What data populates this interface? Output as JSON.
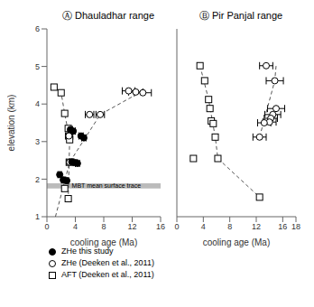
{
  "chart_data": [
    {
      "type": "scatter",
      "title": "Ⓐ  Dhauladhar range",
      "x_label": "cooling age (Ma)",
      "y_label": "elevation (km)",
      "xlim": [
        0,
        16
      ],
      "xticks": [
        0,
        4,
        8,
        12,
        16
      ],
      "ylim": [
        1,
        6
      ],
      "yticks": [
        1,
        2,
        3,
        4,
        5,
        6
      ],
      "grid": false,
      "legend": "bottom",
      "bands": [
        {
          "y0": 1.75,
          "y1": 1.89,
          "color": "#aaaaaa"
        }
      ],
      "annotations": [
        {
          "text": "MBT mean surface trace",
          "x": 3.5,
          "y": 1.82
        }
      ],
      "series": [
        {
          "type": "line",
          "line_style": "dashed",
          "color": "#555555",
          "x": [
            1.2,
            3.2,
            7.5,
            13.5
          ],
          "values": [
            1.0,
            2.45,
            3.72,
            4.35
          ]
        },
        {
          "type": "line",
          "line_style": "dashed",
          "color": "#555555",
          "x": [
            1.0,
            2.0,
            2.5,
            3.2,
            3.0
          ],
          "values": [
            4.45,
            4.3,
            3.75,
            3.05,
            1.48
          ]
        },
        {
          "name": "ZHe this study",
          "type": "scatter",
          "marker": "filled_circle",
          "color": "#000000",
          "x": [
            3.3,
            3.7,
            4.8,
            5.2,
            3.5,
            4.0,
            4.3,
            1.8,
            2.3,
            2.8
          ],
          "values": [
            3.32,
            3.28,
            3.15,
            3.1,
            2.46,
            2.44,
            2.42,
            2.12,
            1.98,
            1.96
          ],
          "xerr": [
            0.3,
            0.3,
            0.3,
            0.3,
            0.3,
            0.3,
            0.3,
            0.25,
            0.25,
            0.25
          ]
        },
        {
          "name": "ZHe (Deeken et al., 2011)",
          "type": "scatter",
          "marker": "open_circle",
          "color": "#000000",
          "x": [
            3.1,
            3.2,
            6.0,
            7.5,
            11.5,
            12.5,
            13.5
          ],
          "values": [
            3.15,
            2.45,
            3.72,
            3.72,
            4.35,
            4.32,
            4.3
          ],
          "xerr": [
            0.5,
            0.5,
            0.6,
            0.6,
            0.9,
            1.0,
            1.2
          ]
        },
        {
          "name": "AFT (Deeken et al., 2011)",
          "type": "scatter",
          "marker": "open_square",
          "color": "#000000",
          "x": [
            1.0,
            2.0,
            2.5,
            3.0,
            3.2,
            3.2,
            3.2,
            2.5,
            3.0
          ],
          "values": [
            4.45,
            4.3,
            3.75,
            3.35,
            3.15,
            3.05,
            2.45,
            1.75,
            1.48
          ]
        }
      ]
    },
    {
      "type": "scatter",
      "title": "Ⓑ  Pir Panjal range",
      "x_label": "cooling age (Ma)",
      "xlim": [
        0,
        18
      ],
      "xticks": [
        0,
        4,
        8,
        12,
        16,
        18
      ],
      "ylim": [
        1,
        6
      ],
      "yticks": [
        1,
        2,
        3,
        4,
        5,
        6
      ],
      "grid": false,
      "tick_labels": "x",
      "series": [
        {
          "type": "line",
          "line_style": "dashed",
          "color": "#555555",
          "x": [
            12.5,
            14.8,
            15.0
          ],
          "values": [
            3.12,
            4.62,
            5.02
          ]
        },
        {
          "type": "line",
          "line_style": "dashed",
          "color": "#555555",
          "x": [
            3.5,
            4.8,
            5.8,
            6.2,
            12.5
          ],
          "values": [
            5.02,
            4.12,
            3.12,
            2.55,
            1.52
          ]
        },
        {
          "type": "scatter",
          "marker": "open_circle",
          "color": "#000000",
          "x": [
            13.5,
            14.8,
            15.0,
            14.5,
            14.2,
            14.0,
            13.2,
            12.5
          ],
          "values": [
            5.02,
            4.62,
            3.88,
            3.72,
            3.62,
            3.52,
            3.5,
            3.12
          ],
          "xerr": [
            1.0,
            1.3,
            1.3,
            1.2,
            1.0,
            1.0,
            1.0,
            1.0
          ]
        },
        {
          "type": "scatter",
          "marker": "open_square",
          "color": "#000000",
          "x": [
            3.5,
            4.2,
            4.8,
            5.0,
            5.2,
            5.5,
            5.8,
            6.2,
            2.5,
            12.5
          ],
          "values": [
            5.02,
            4.62,
            4.12,
            3.88,
            3.55,
            3.48,
            3.12,
            2.55,
            2.55,
            1.52
          ]
        }
      ]
    }
  ]
}
